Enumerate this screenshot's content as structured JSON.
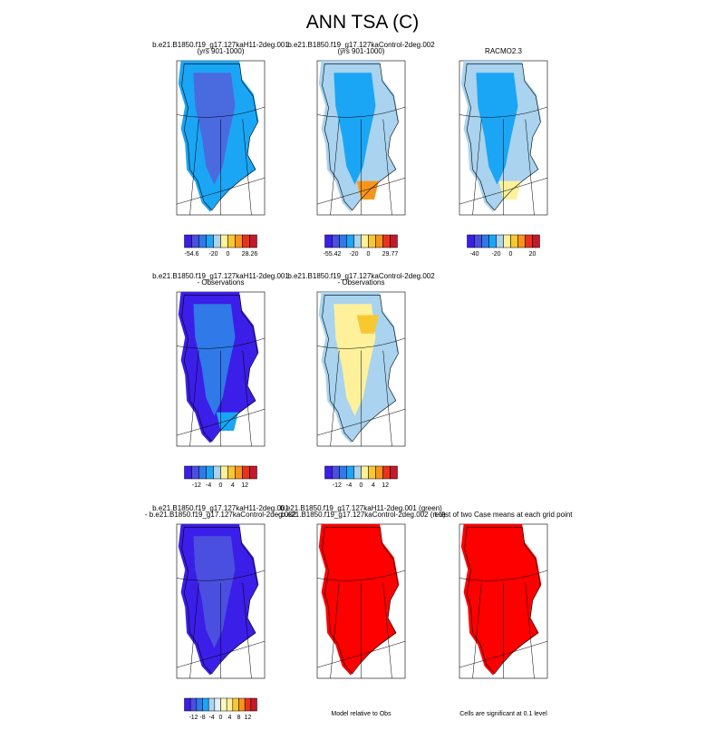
{
  "title": "ANN TSA (C)",
  "panels": [
    {
      "title": [
        "b.e21.B1850.f19_g17.127kaH11-2deg.001",
        "(yrs 901-1000)"
      ],
      "colorbar": [
        "-54.6",
        "-20",
        "0",
        "28.26"
      ]
    },
    {
      "title": [
        "b.e21.B1850.f19_g17.127kaControl-2deg.002",
        "(yrs 901-1000)"
      ],
      "colorbar": [
        "-55.42",
        "-20",
        "0",
        "29.77"
      ]
    },
    {
      "title": [
        "RACMO2.3"
      ],
      "colorbar": [
        "-40",
        "-20",
        "0",
        "20"
      ]
    },
    {
      "title": [
        "b.e21.B1850.f19_g17.127kaH11-2deg.001",
        "- Observations"
      ],
      "colorbar": [
        "-12",
        "-4",
        "0",
        "4",
        "12"
      ]
    },
    {
      "title": [
        "b.e21.B1850.f19_g17.127kaControl-2deg.002",
        "- Observations"
      ],
      "colorbar": [
        "-12",
        "-4",
        "0",
        "4",
        "12"
      ]
    },
    {
      "title": [
        "b.e21.B1850.f19_g17.127kaH11-2deg.001",
        "- b.e21.B1850.f19_g17.127kaControl-2deg.002"
      ],
      "colorbar": [
        "-12",
        "-8",
        "-4",
        "0",
        "4",
        "8",
        "12"
      ]
    },
    {
      "title": [
        "b.e21.B1850.f19_g17.127kaH11-2deg.001 (green)",
        "- b.e21.B1850.f19_g17.127kaControl-2deg.002 (red)"
      ],
      "note": "Model relative to Obs"
    },
    {
      "title": [
        "t-test of two Case means at each grid point"
      ],
      "note": "Cells are significant at 0.1 level"
    }
  ]
}
